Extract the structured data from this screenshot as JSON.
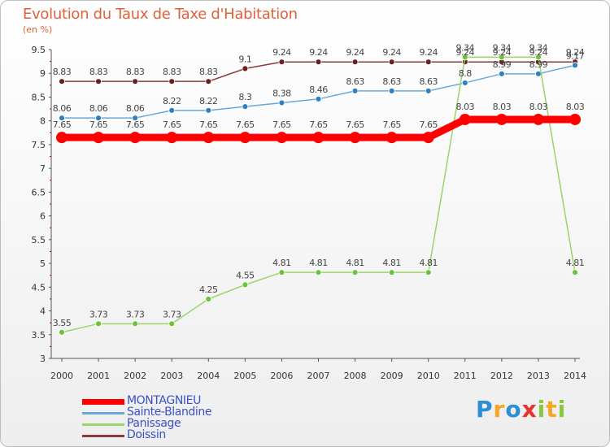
{
  "title": "Evolution du Taux de Taxe d'Habitation",
  "subtitle": "(en %)",
  "logo": {
    "letters": [
      "P",
      "r",
      "o",
      "x",
      "i",
      "t",
      "i"
    ],
    "colors": [
      "#2b8fd6",
      "#f5a623",
      "#2b8fd6",
      "#e8312a",
      "#8cc63f",
      "#f5a623",
      "#8cc63f"
    ]
  },
  "chart_data": {
    "type": "line",
    "x": [
      2000,
      2001,
      2002,
      2003,
      2004,
      2005,
      2006,
      2007,
      2008,
      2009,
      2010,
      2011,
      2012,
      2013,
      2014
    ],
    "ylim": [
      3,
      9.5
    ],
    "yticks": [
      "3",
      "3.5",
      "4",
      "4.5",
      "5",
      "5.5",
      "6",
      "6.5",
      "7",
      "7.5",
      "8",
      "8.5",
      "9",
      "9.5"
    ],
    "grid": false,
    "legend_position": "bottom-left",
    "series": [
      {
        "name": "MONTAGNIEU",
        "color": "#ff0000",
        "thick": true,
        "values": [
          7.65,
          7.65,
          7.65,
          7.65,
          7.65,
          7.65,
          7.65,
          7.65,
          7.65,
          7.65,
          7.65,
          8.03,
          8.03,
          8.03,
          8.03
        ],
        "labels": [
          "7.65",
          "7.65",
          "7.65",
          "7.65",
          "7.65",
          "7.65",
          "7.65",
          "7.65",
          "7.65",
          "7.65",
          "7.65",
          "8.03",
          "8.03",
          "8.03",
          "8.03"
        ]
      },
      {
        "name": "Sainte-Blandine",
        "color": "#6aa8d8",
        "marker": "#2f80c0",
        "values": [
          8.06,
          8.06,
          8.06,
          8.22,
          8.22,
          8.3,
          8.38,
          8.46,
          8.63,
          8.63,
          8.63,
          8.8,
          8.99,
          8.99,
          9.17
        ],
        "labels": [
          "8.06",
          "8.06",
          "8.06",
          "8.22",
          "8.22",
          "8.3",
          "8.38",
          "8.46",
          "8.63",
          "8.63",
          "8.63",
          "8.8",
          "8.99",
          "8.99",
          "9.17"
        ]
      },
      {
        "name": "Panissage",
        "color": "#9ad46a",
        "marker": "#6cc23a",
        "values": [
          3.55,
          3.73,
          3.73,
          3.73,
          4.25,
          4.55,
          4.81,
          4.81,
          4.81,
          4.81,
          4.81,
          9.34,
          9.34,
          9.34,
          4.81
        ],
        "labels": [
          "3.55",
          "3.73",
          "3.73",
          "3.73",
          "4.25",
          "4.55",
          "4.81",
          "4.81",
          "4.81",
          "4.81",
          "4.81",
          "9.34",
          "9.34",
          "9.34",
          "4.81"
        ]
      },
      {
        "name": "Doissin",
        "color": "#8b3a3a",
        "marker": "#6b1f1f",
        "values": [
          8.83,
          8.83,
          8.83,
          8.83,
          8.83,
          9.1,
          9.24,
          9.24,
          9.24,
          9.24,
          9.24,
          9.24,
          9.24,
          9.24,
          9.24
        ],
        "labels": [
          "8.83",
          "8.83",
          "8.83",
          "8.83",
          "8.83",
          "9.1",
          "9.24",
          "9.24",
          "9.24",
          "9.24",
          "9.24",
          "9.24",
          "9.24",
          "9.24",
          "9.24"
        ]
      }
    ]
  }
}
